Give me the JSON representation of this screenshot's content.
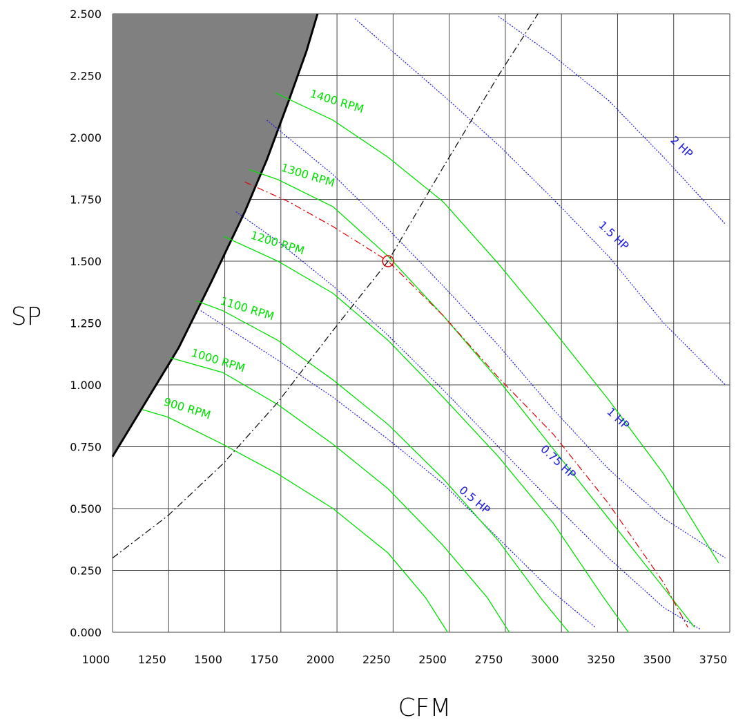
{
  "chart_data": {
    "type": "line",
    "xlabel": "CFM",
    "ylabel": "SP",
    "xlim": [
      1000,
      3800
    ],
    "ylim": [
      0,
      2.5
    ],
    "x_ticks": [
      "1000",
      "1250",
      "1500",
      "1750",
      "2000",
      "2250",
      "2500",
      "2750",
      "3000",
      "3250",
      "3500",
      "3750"
    ],
    "y_ticks": [
      "0.000",
      "0.250",
      "0.500",
      "0.750",
      "1.000",
      "1.250",
      "1.500",
      "1.750",
      "2.000",
      "2.250",
      "2.500"
    ],
    "grid": true,
    "colors": {
      "rpm": "#00e000",
      "hp": "#1a1ae0",
      "system": "#e00000",
      "stall": "#808080",
      "grid": "#444444",
      "efficiency": "#000000"
    },
    "stall_region": {
      "boundary": [
        [
          1000,
          0.71
        ],
        [
          1150,
          0.93
        ],
        [
          1300,
          1.15
        ],
        [
          1450,
          1.42
        ],
        [
          1600,
          1.7
        ],
        [
          1700,
          1.91
        ],
        [
          1800,
          2.15
        ],
        [
          1880,
          2.35
        ],
        [
          1930,
          2.5
        ]
      ]
    },
    "rpm_series": [
      {
        "name": "900 RPM",
        "label": "900 RPM",
        "points": [
          [
            1135,
            0.9
          ],
          [
            1250,
            0.87
          ],
          [
            1500,
            0.76
          ],
          [
            1750,
            0.64
          ],
          [
            2000,
            0.5
          ],
          [
            2250,
            0.32
          ],
          [
            2420,
            0.14
          ],
          [
            2520,
            0.0
          ]
        ]
      },
      {
        "name": "1000 RPM",
        "label": "1000 RPM",
        "points": [
          [
            1260,
            1.11
          ],
          [
            1500,
            1.05
          ],
          [
            1750,
            0.92
          ],
          [
            2000,
            0.76
          ],
          [
            2250,
            0.58
          ],
          [
            2500,
            0.35
          ],
          [
            2700,
            0.14
          ],
          [
            2800,
            0.0
          ]
        ]
      },
      {
        "name": "1100 RPM",
        "label": "1100 RPM",
        "points": [
          [
            1380,
            1.34
          ],
          [
            1500,
            1.3
          ],
          [
            1750,
            1.18
          ],
          [
            2000,
            1.02
          ],
          [
            2250,
            0.84
          ],
          [
            2500,
            0.62
          ],
          [
            2750,
            0.37
          ],
          [
            2950,
            0.13
          ],
          [
            3070,
            0.0
          ]
        ]
      },
      {
        "name": "1200 RPM",
        "label": "1200 RPM",
        "points": [
          [
            1505,
            1.6
          ],
          [
            1750,
            1.5
          ],
          [
            2000,
            1.37
          ],
          [
            2250,
            1.18
          ],
          [
            2500,
            0.95
          ],
          [
            2750,
            0.71
          ],
          [
            3000,
            0.44
          ],
          [
            3220,
            0.15
          ],
          [
            3340,
            0.0
          ]
        ]
      },
      {
        "name": "1300 RPM",
        "label": "1300 RPM",
        "points": [
          [
            1620,
            1.87
          ],
          [
            1750,
            1.83
          ],
          [
            2000,
            1.72
          ],
          [
            2250,
            1.52
          ],
          [
            2500,
            1.28
          ],
          [
            2750,
            1.02
          ],
          [
            3000,
            0.74
          ],
          [
            3250,
            0.46
          ],
          [
            3500,
            0.18
          ],
          [
            3640,
            0.02
          ]
        ]
      },
      {
        "name": "1400 RPM",
        "label": "1400 RPM",
        "points": [
          [
            1740,
            2.18
          ],
          [
            2000,
            2.07
          ],
          [
            2250,
            1.92
          ],
          [
            2500,
            1.74
          ],
          [
            2750,
            1.49
          ],
          [
            3000,
            1.22
          ],
          [
            3250,
            0.94
          ],
          [
            3500,
            0.64
          ],
          [
            3750,
            0.28
          ]
        ]
      }
    ],
    "hp_series": [
      {
        "name": "0.5 HP",
        "label": "0.5 HP",
        "points": [
          [
            1400,
            1.3
          ],
          [
            1750,
            1.1
          ],
          [
            2000,
            0.95
          ],
          [
            2250,
            0.78
          ],
          [
            2500,
            0.6
          ],
          [
            2750,
            0.38
          ],
          [
            3000,
            0.16
          ],
          [
            3190,
            0.02
          ]
        ]
      },
      {
        "name": "0.75 HP",
        "label": "0.75 HP",
        "points": [
          [
            1560,
            1.7
          ],
          [
            1750,
            1.58
          ],
          [
            2000,
            1.4
          ],
          [
            2250,
            1.2
          ],
          [
            2500,
            0.98
          ],
          [
            2750,
            0.75
          ],
          [
            3000,
            0.52
          ],
          [
            3250,
            0.3
          ],
          [
            3500,
            0.1
          ],
          [
            3670,
            0.01
          ]
        ]
      },
      {
        "name": "1 HP",
        "label": "1 HP",
        "points": [
          [
            1700,
            2.07
          ],
          [
            2000,
            1.85
          ],
          [
            2250,
            1.63
          ],
          [
            2500,
            1.4
          ],
          [
            2750,
            1.16
          ],
          [
            3000,
            0.9
          ],
          [
            3250,
            0.66
          ],
          [
            3500,
            0.46
          ],
          [
            3780,
            0.3
          ]
        ]
      },
      {
        "name": "1.5 HP",
        "label": "1.5 HP",
        "points": [
          [
            2100,
            2.48
          ],
          [
            2500,
            2.17
          ],
          [
            2750,
            1.97
          ],
          [
            3000,
            1.75
          ],
          [
            3250,
            1.52
          ],
          [
            3500,
            1.25
          ],
          [
            3780,
            1.0
          ]
        ]
      },
      {
        "name": "2 HP",
        "label": "2 HP",
        "points": [
          [
            2750,
            2.49
          ],
          [
            3000,
            2.33
          ],
          [
            3250,
            2.15
          ],
          [
            3500,
            1.92
          ],
          [
            3780,
            1.65
          ]
        ]
      }
    ],
    "system_curve": [
      [
        1600,
        1.82
      ],
      [
        1800,
        1.74
      ],
      [
        2000,
        1.64
      ],
      [
        2250,
        1.5
      ],
      [
        2500,
        1.28
      ],
      [
        2750,
        1.03
      ],
      [
        3000,
        0.8
      ],
      [
        3250,
        0.52
      ],
      [
        3500,
        0.2
      ],
      [
        3610,
        0.02
      ]
    ],
    "efficiency_line": [
      [
        1000,
        0.3
      ],
      [
        1250,
        0.47
      ],
      [
        1500,
        0.68
      ],
      [
        1750,
        0.93
      ],
      [
        2000,
        1.22
      ],
      [
        2250,
        1.5
      ],
      [
        2500,
        1.88
      ],
      [
        2750,
        2.25
      ],
      [
        2930,
        2.5
      ]
    ],
    "operating_point": {
      "x": 2250,
      "y": 1.5
    }
  }
}
